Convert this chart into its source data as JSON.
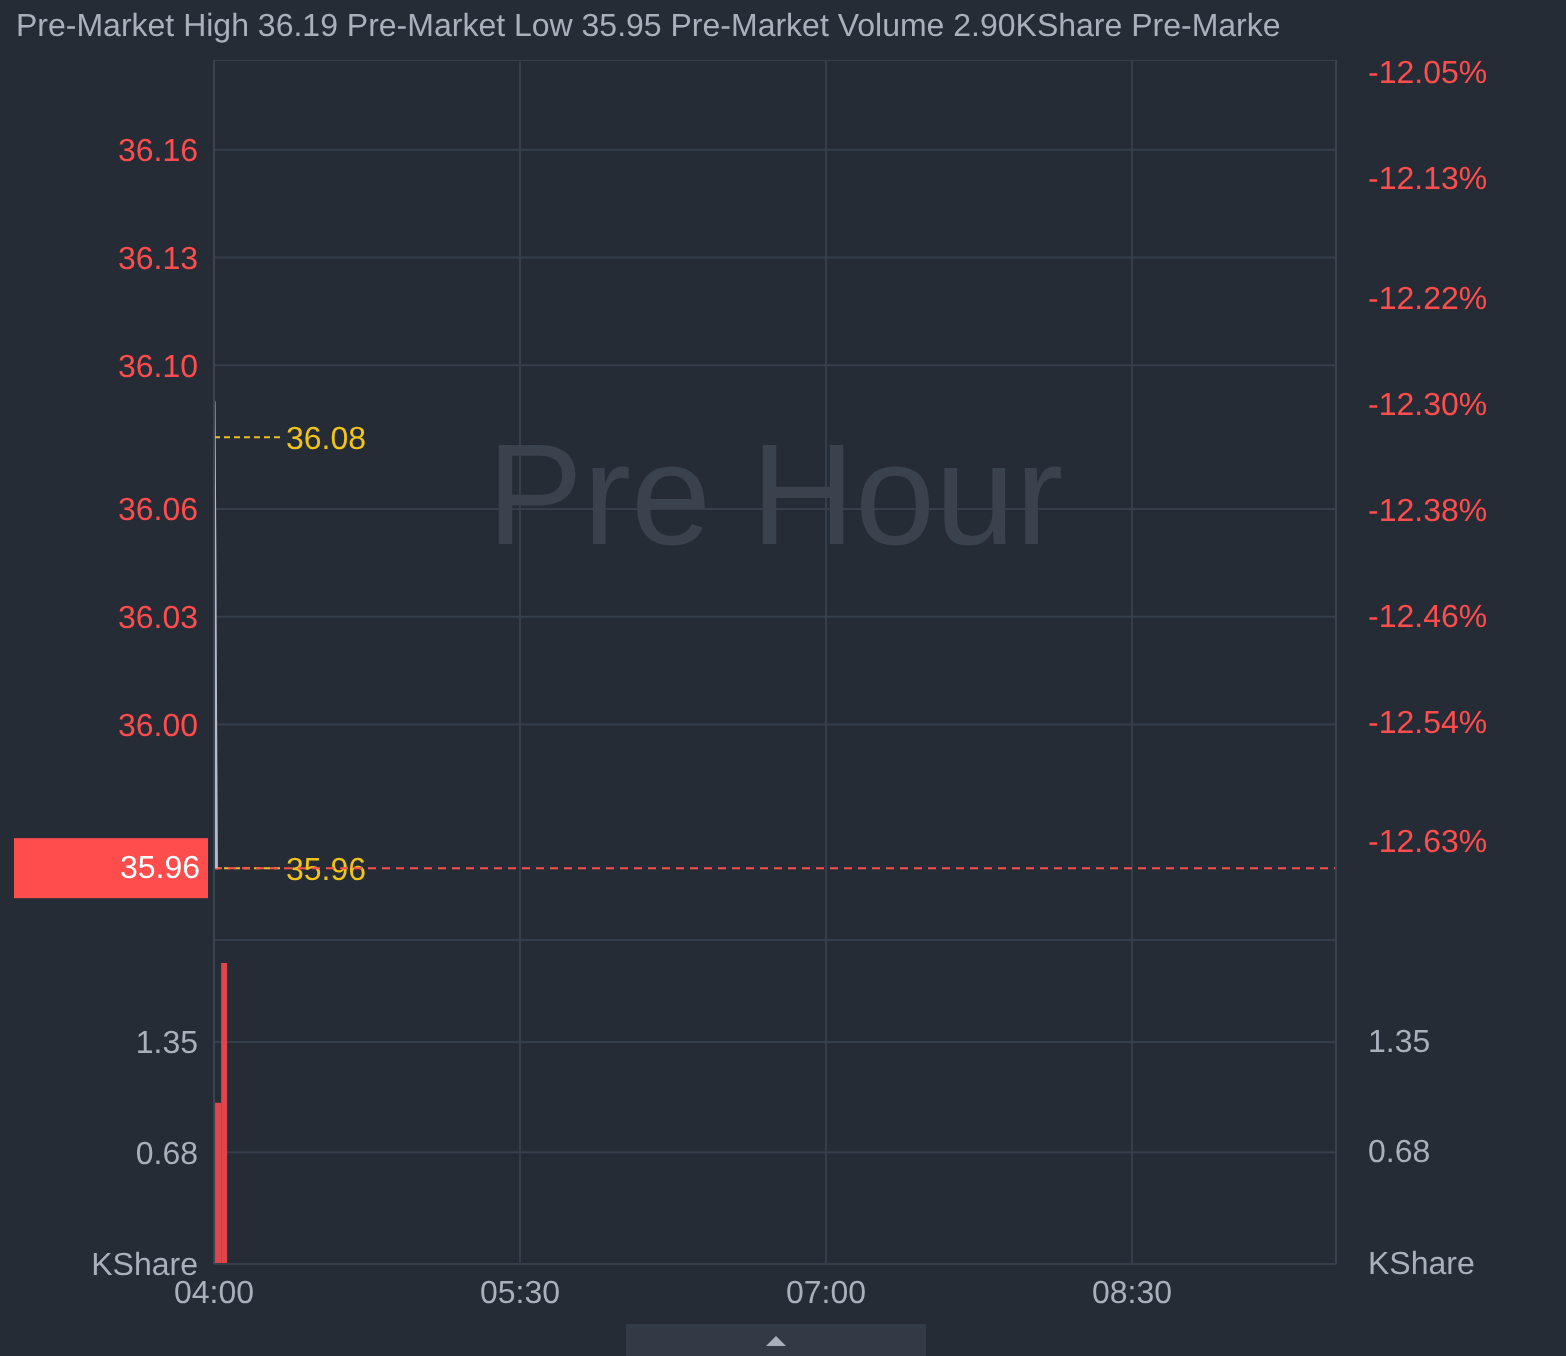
{
  "chart_data": [
    {
      "type": "line",
      "title": "Pre-Market High 36.19 Pre-Market Low 35.95 Pre-Market Volume 2.90KShare Pre-Marke",
      "annotations": [
        "Pre Hour",
        {
          "text": "36.08",
          "x": 4.0,
          "y": 36.08
        },
        {
          "text": "35.96",
          "x": 4.0,
          "y": 35.96
        }
      ],
      "x": [
        4.0,
        4.004,
        4.008,
        4.012
      ],
      "series": [
        {
          "color": "#b4bcc8",
          "values": [
            36.09,
            36.05,
            36.0,
            35.96
          ]
        }
      ],
      "xlim": [
        4.0,
        9.5
      ],
      "xticks": [
        4,
        5.5,
        7,
        8.5
      ],
      "ylim": [
        35.94,
        36.185
      ],
      "yticks": [
        {
          "value": 36.0,
          "label": "36.00"
        },
        36.03,
        36.06,
        {
          "value": 36.1,
          "label": "36.10"
        },
        36.13,
        36.16
      ],
      "y2lim": [
        -12.704,
        -12.04
      ],
      "y2ticks": [
        {
          "value": -12.63,
          "label": "-12.63%"
        },
        {
          "value": -12.54,
          "label": "-12.54%"
        },
        {
          "value": -12.46,
          "label": "-12.46%"
        },
        {
          "value": -12.38,
          "label": "-12.38%"
        },
        {
          "value": -12.3,
          "label": "-12.30%"
        },
        {
          "value": -12.22,
          "label": "-12.22%"
        },
        {
          "value": -12.13,
          "label": "-12.13%"
        },
        {
          "value": -12.05,
          "label": "-12.05%"
        }
      ],
      "ref_lines": [
        {
          "axis": "y",
          "value": 35.96,
          "label": "35.96",
          "color": "#ff4d4d",
          "line_style": "dashed"
        }
      ],
      "grid": true,
      "tick_labels": "y"
    },
    {
      "type": "bar",
      "x": [
        4.02,
        4.05
      ],
      "series": [
        {
          "color": "#e0454a",
          "values": [
            0.98,
            1.83
          ]
        }
      ],
      "xlim": [
        4.0,
        9.5
      ],
      "xticks": [
        {
          "value": 4,
          "label": "04:00"
        },
        {
          "value": 5.5,
          "label": "05:30"
        },
        {
          "value": 7,
          "label": "07:00"
        },
        {
          "value": 8.5,
          "label": "08:30"
        }
      ],
      "ylim": [
        0,
        1.97
      ],
      "yticks": [
        {
          "value": 0,
          "label": "KShare"
        },
        0.68,
        1.35
      ],
      "y2lim": [
        0,
        1.97
      ],
      "y2ticks": [
        {
          "value": 0,
          "label": "KShare"
        },
        0.68,
        1.35
      ],
      "grid": true
    }
  ]
}
